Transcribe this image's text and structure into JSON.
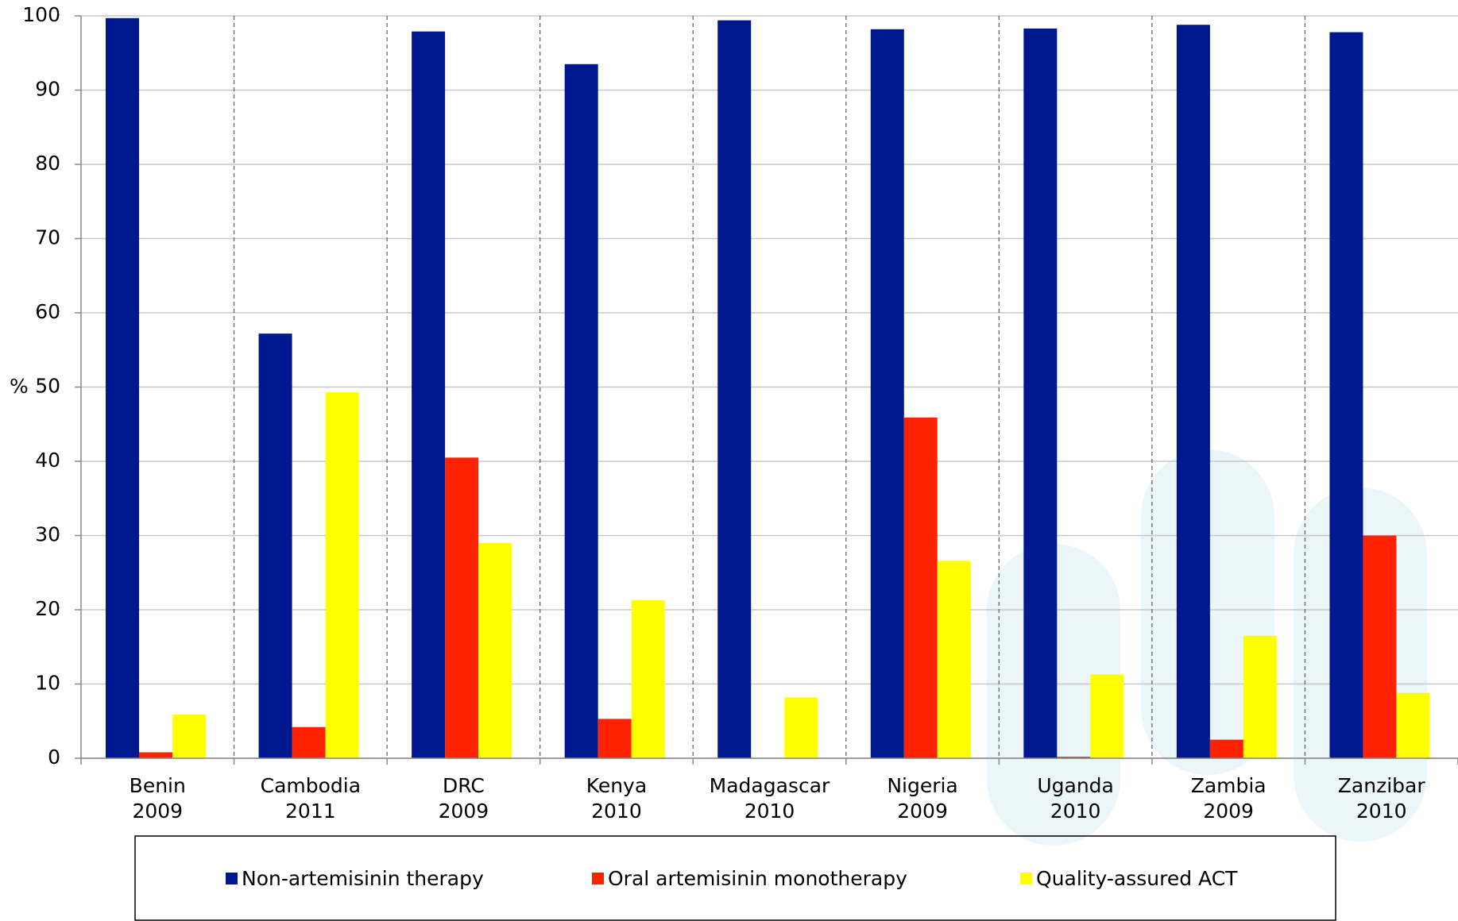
{
  "chart_data": {
    "type": "bar",
    "y_label": "%",
    "categories": [
      "Benin\n2009",
      "Cambodia\n2011",
      "DRC\n2009",
      "Kenya\n2010",
      "Madagascar\n2010",
      "Nigeria\n2009",
      "Uganda\n2010",
      "Zambia\n2009",
      "Zanzibar\n2010"
    ],
    "series": [
      {
        "name": "Non-artemisinin therapy",
        "color": "#00188f",
        "values": [
          99.7,
          57.2,
          97.9,
          93.5,
          99.4,
          98.2,
          98.3,
          98.8,
          97.8
        ]
      },
      {
        "name": "Oral artemisinin monotherapy",
        "color": "#ff2200",
        "values": [
          0.8,
          4.2,
          40.5,
          5.3,
          0,
          45.9,
          0.2,
          2.5,
          30.0
        ]
      },
      {
        "name": "Quality-assured ACT",
        "color": "#ffff00",
        "values": [
          5.9,
          49.3,
          29.0,
          21.3,
          8.2,
          26.6,
          11.3,
          16.5,
          8.8
        ]
      }
    ],
    "ylim": [
      0,
      100
    ],
    "yticks": [
      0,
      10,
      20,
      30,
      40,
      50,
      60,
      70,
      80,
      90,
      100
    ],
    "grid": true,
    "legend": "bottom"
  }
}
